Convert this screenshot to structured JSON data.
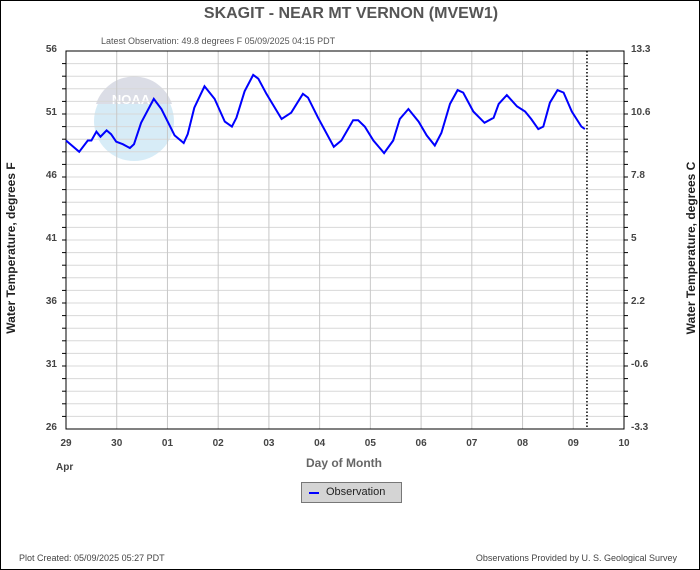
{
  "chart_data": {
    "type": "line",
    "title": "SKAGIT - NEAR MT VERNON  (MVEW1)",
    "subtitle": "Latest Observation: 49.8 degrees F 05/09/2025 04:15 PDT",
    "xlabel": "Day of Month",
    "ylabel": "Water Temperature, degrees F",
    "ylabel_right": "Water Temperature, degrees C",
    "x_ticks": [
      "29",
      "30",
      "01",
      "02",
      "03",
      "04",
      "05",
      "06",
      "07",
      "08",
      "09",
      "10"
    ],
    "x_month_label": "Apr",
    "xlim_days": [
      0,
      11
    ],
    "y_ticks": [
      "56",
      "51",
      "46",
      "41",
      "36",
      "31",
      "26"
    ],
    "y_ticks_values": [
      56,
      51,
      46,
      41,
      36,
      31,
      26
    ],
    "y_ticks_right": [
      "13.3",
      "10.6",
      "7.8",
      "5",
      "2.2",
      "-0.6",
      "-3.3"
    ],
    "ylim": [
      26,
      56
    ],
    "grid": true,
    "latest_marker_day": 10.27,
    "legend": {
      "position": "bottom-center",
      "entries": [
        "Observation"
      ]
    },
    "series": [
      {
        "name": "Observation",
        "color": "#0000ff",
        "x_days_since_apr29": [
          0,
          0.26,
          0.43,
          0.5,
          0.6,
          0.68,
          0.8,
          0.89,
          0.99,
          1.12,
          1.26,
          1.34,
          1.48,
          1.73,
          1.88,
          2.14,
          2.32,
          2.4,
          2.53,
          2.73,
          2.93,
          3.13,
          3.27,
          3.36,
          3.52,
          3.69,
          3.79,
          3.95,
          4.25,
          4.44,
          4.67,
          4.77,
          4.97,
          5.28,
          5.43,
          5.66,
          5.76,
          5.89,
          6.06,
          6.27,
          6.45,
          6.58,
          6.75,
          6.95,
          7.11,
          7.27,
          7.4,
          7.57,
          7.72,
          7.83,
          8.03,
          8.25,
          8.43,
          8.53,
          8.69,
          8.89,
          9.05,
          9.17,
          9.31,
          9.41,
          9.54,
          9.69,
          9.81,
          9.97,
          10.16,
          10.23
        ],
        "values_F": [
          48.9,
          48.0,
          48.9,
          48.9,
          49.6,
          49.2,
          49.7,
          49.4,
          48.8,
          48.6,
          48.3,
          48.6,
          50.3,
          52.2,
          51.4,
          49.3,
          48.7,
          49.4,
          51.5,
          53.2,
          52.2,
          50.4,
          50.0,
          50.7,
          52.8,
          54.1,
          53.8,
          52.6,
          50.6,
          51.1,
          52.6,
          52.3,
          50.7,
          48.4,
          48.9,
          50.5,
          50.5,
          50.0,
          48.9,
          47.9,
          48.9,
          50.6,
          51.4,
          50.4,
          49.3,
          48.5,
          49.5,
          51.8,
          52.9,
          52.7,
          51.2,
          50.3,
          50.7,
          51.8,
          52.5,
          51.6,
          51.2,
          50.6,
          49.8,
          50.0,
          51.9,
          52.9,
          52.7,
          51.2,
          50.0,
          49.8
        ]
      }
    ]
  },
  "footer": {
    "created": "Plot Created: 05/09/2025 05:27 PDT",
    "provided": "Observations Provided by U. S. Geological Survey"
  },
  "logo_text": "NOAA"
}
